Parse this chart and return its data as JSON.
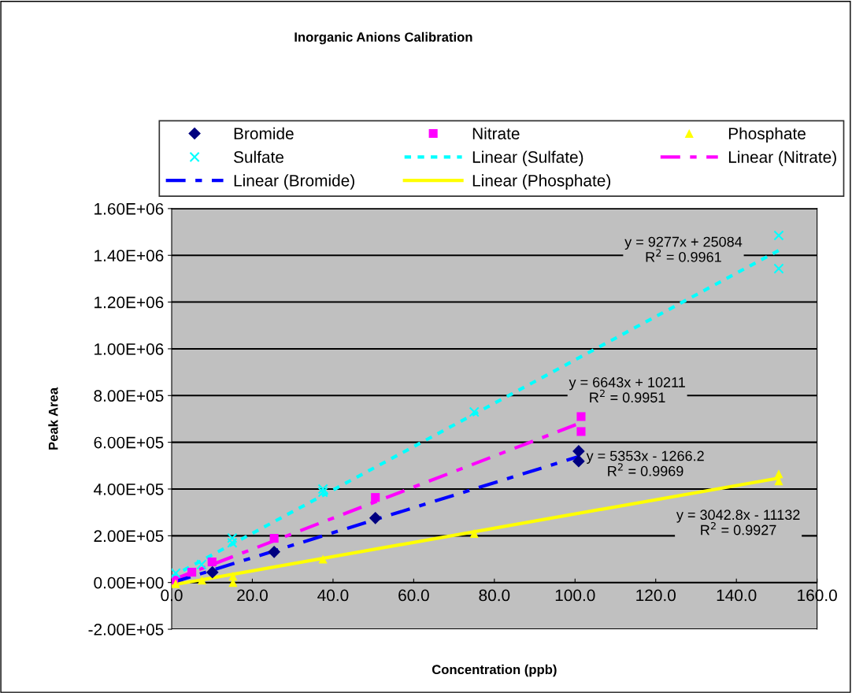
{
  "chart_data": {
    "type": "scatter",
    "title": "Inorganic Anions Calibration",
    "xlabel": "Concentration (ppb)",
    "ylabel": "Peak Area",
    "series": [
      {
        "name": "Bromide",
        "color": "#000080",
        "marker": "diamond",
        "x": [
          10.1,
          25.4,
          50.5,
          100.9,
          100.9
        ],
        "values": [
          44000,
          131000,
          276000,
          562000,
          519000
        ]
      },
      {
        "name": "Nitrate",
        "color": "#ff00ff",
        "marker": "square",
        "x": [
          0.5,
          5.0,
          10.0,
          25.4,
          50.5,
          101.5,
          101.5
        ],
        "values": [
          10000,
          44000,
          88000,
          189000,
          364000,
          710000,
          646000
        ]
      },
      {
        "name": "Phosphate",
        "color": "#ffff00",
        "marker": "triangle",
        "x": [
          1.0,
          7.5,
          15.2,
          15.2,
          37.5,
          75.0,
          150.5,
          150.5
        ],
        "values": [
          -5000,
          10000,
          27000,
          0,
          100000,
          210000,
          465000,
          435000
        ]
      },
      {
        "name": "Sulfate",
        "color": "#00ffff",
        "marker": "cross",
        "x": [
          1.0,
          7.4,
          15.0,
          15.0,
          37.5,
          37.5,
          75.0,
          150.5,
          150.5
        ],
        "values": [
          40000,
          77000,
          170000,
          190000,
          387000,
          400000,
          730000,
          1485000,
          1343000
        ]
      },
      {
        "name": "Linear (Sulfate)",
        "type": "line",
        "color": "#00ffff",
        "line_style": "dotted",
        "x": [
          0,
          150.5
        ],
        "values": [
          25000,
          1421000
        ]
      },
      {
        "name": "Linear (Nitrate)",
        "type": "line",
        "color": "#ff00ff",
        "line_style": "dashdot",
        "x": [
          0,
          101.5
        ],
        "values": [
          10000,
          684000
        ]
      },
      {
        "name": "Linear (Bromide)",
        "type": "line",
        "color": "#0000ff",
        "line_style": "dashdot",
        "x": [
          0,
          100.9
        ],
        "values": [
          -1000,
          539000
        ]
      },
      {
        "name": "Linear (Phosphate)",
        "type": "line",
        "color": "#ffff00",
        "line_style": "solid",
        "x": [
          0,
          150.5
        ],
        "values": [
          -11000,
          447000
        ]
      }
    ],
    "annotations": [
      "y = 9277x + 25084\nR$^{2}$ = 0.9961",
      "y = 6643x + 10211\nR$^{2}$ = 0.9951",
      "y = 5353x - 1266.2\nR$^{2}$ = 0.9969",
      "y = 3042.8x - 11132\nR$^{2}$ = 0.9927"
    ],
    "xlim": [
      0,
      160
    ],
    "xticks": [
      {
        "value": 0,
        "label": "0.0"
      },
      {
        "value": 20,
        "label": "20.0"
      },
      {
        "value": 40,
        "label": "40.0"
      },
      {
        "value": 60,
        "label": "60.0"
      },
      {
        "value": 80,
        "label": "80.0"
      },
      {
        "value": 100,
        "label": "100.0"
      },
      {
        "value": 120,
        "label": "120.0"
      },
      {
        "value": 140,
        "label": "140.0"
      },
      {
        "value": 160,
        "label": "160.0"
      }
    ],
    "ylim": [
      -200000,
      1600000
    ],
    "yticks": [
      {
        "value": -200000,
        "label": "-2.00E+05"
      },
      {
        "value": 0,
        "label": "0.00E+00"
      },
      {
        "value": 200000,
        "label": "2.00E+05"
      },
      {
        "value": 400000,
        "label": "4.00E+05"
      },
      {
        "value": 600000,
        "label": "6.00E+05"
      },
      {
        "value": 800000,
        "label": "8.00E+05"
      },
      {
        "value": 1000000,
        "label": "1.00E+06"
      },
      {
        "value": 1200000,
        "label": "1.20E+06"
      },
      {
        "value": 1400000,
        "label": "1.40E+06"
      },
      {
        "value": 1600000,
        "label": "1.60E+06"
      }
    ],
    "grid": "y",
    "legend": "top"
  }
}
